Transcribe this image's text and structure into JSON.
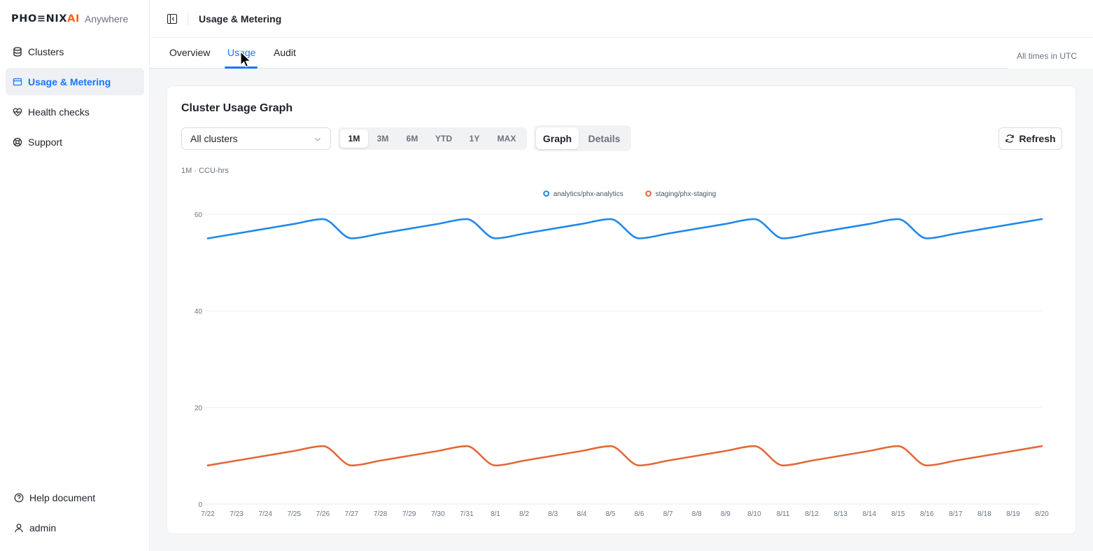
{
  "app": {
    "logo_text_main": "PHO≡NIX",
    "logo_text_ai": "AI",
    "logo_subtitle": "Anywhere"
  },
  "sidebar": {
    "items": [
      {
        "label": "Clusters",
        "icon": "database-icon",
        "active": false
      },
      {
        "label": "Usage & Metering",
        "icon": "card-icon",
        "active": true
      },
      {
        "label": "Health checks",
        "icon": "heart-pulse-icon",
        "active": false
      },
      {
        "label": "Support",
        "icon": "lifebuoy-icon",
        "active": false
      }
    ],
    "bottom": [
      {
        "label": "Help document",
        "icon": "help-circle-icon"
      },
      {
        "label": "admin",
        "icon": "user-icon"
      }
    ]
  },
  "header": {
    "title": "Usage & Metering"
  },
  "tabs": {
    "items": [
      "Overview",
      "Usage",
      "Audit"
    ],
    "active": "Usage",
    "timezone_note": "All times in UTC"
  },
  "card": {
    "title": "Cluster Usage Graph",
    "cluster_select": {
      "value": "All clusters"
    },
    "time_ranges": [
      "1M",
      "3M",
      "6M",
      "YTD",
      "1Y",
      "MAX"
    ],
    "active_range": "1M",
    "views": [
      "Graph",
      "Details"
    ],
    "active_view": "Graph",
    "refresh_label": "Refresh",
    "caption": "1M · CCU-hrs"
  },
  "colors": {
    "accent": "#1677ff",
    "series_analytics": "#2188e8",
    "series_staging": "#e2683a"
  },
  "chart_data": {
    "type": "line",
    "title": "",
    "xlabel": "",
    "ylabel": "",
    "ylim": [
      0,
      60
    ],
    "yticks": [
      0,
      20,
      40,
      60
    ],
    "grid": true,
    "legend_position": "top-center",
    "x": [
      "7/22",
      "7/23",
      "7/24",
      "7/25",
      "7/26",
      "7/27",
      "7/28",
      "7/29",
      "7/30",
      "7/31",
      "8/1",
      "8/2",
      "8/3",
      "8/4",
      "8/5",
      "8/6",
      "8/7",
      "8/8",
      "8/9",
      "8/10",
      "8/11",
      "8/12",
      "8/13",
      "8/14",
      "8/15",
      "8/16",
      "8/17",
      "8/18",
      "8/19",
      "8/20"
    ],
    "series": [
      {
        "name": "analytics/phx-analytics",
        "values": [
          55,
          56,
          57,
          58,
          59,
          55,
          56,
          57,
          58,
          59,
          55,
          56,
          57,
          58,
          59,
          55,
          56,
          57,
          58,
          59,
          55,
          56,
          57,
          58,
          59,
          55,
          56,
          57,
          58,
          59
        ]
      },
      {
        "name": "staging/phx-staging",
        "values": [
          8,
          9,
          10,
          11,
          12,
          8,
          9,
          10,
          11,
          12,
          8,
          9,
          10,
          11,
          12,
          8,
          9,
          10,
          11,
          12,
          8,
          9,
          10,
          11,
          12,
          8,
          9,
          10,
          11,
          12
        ]
      }
    ]
  }
}
